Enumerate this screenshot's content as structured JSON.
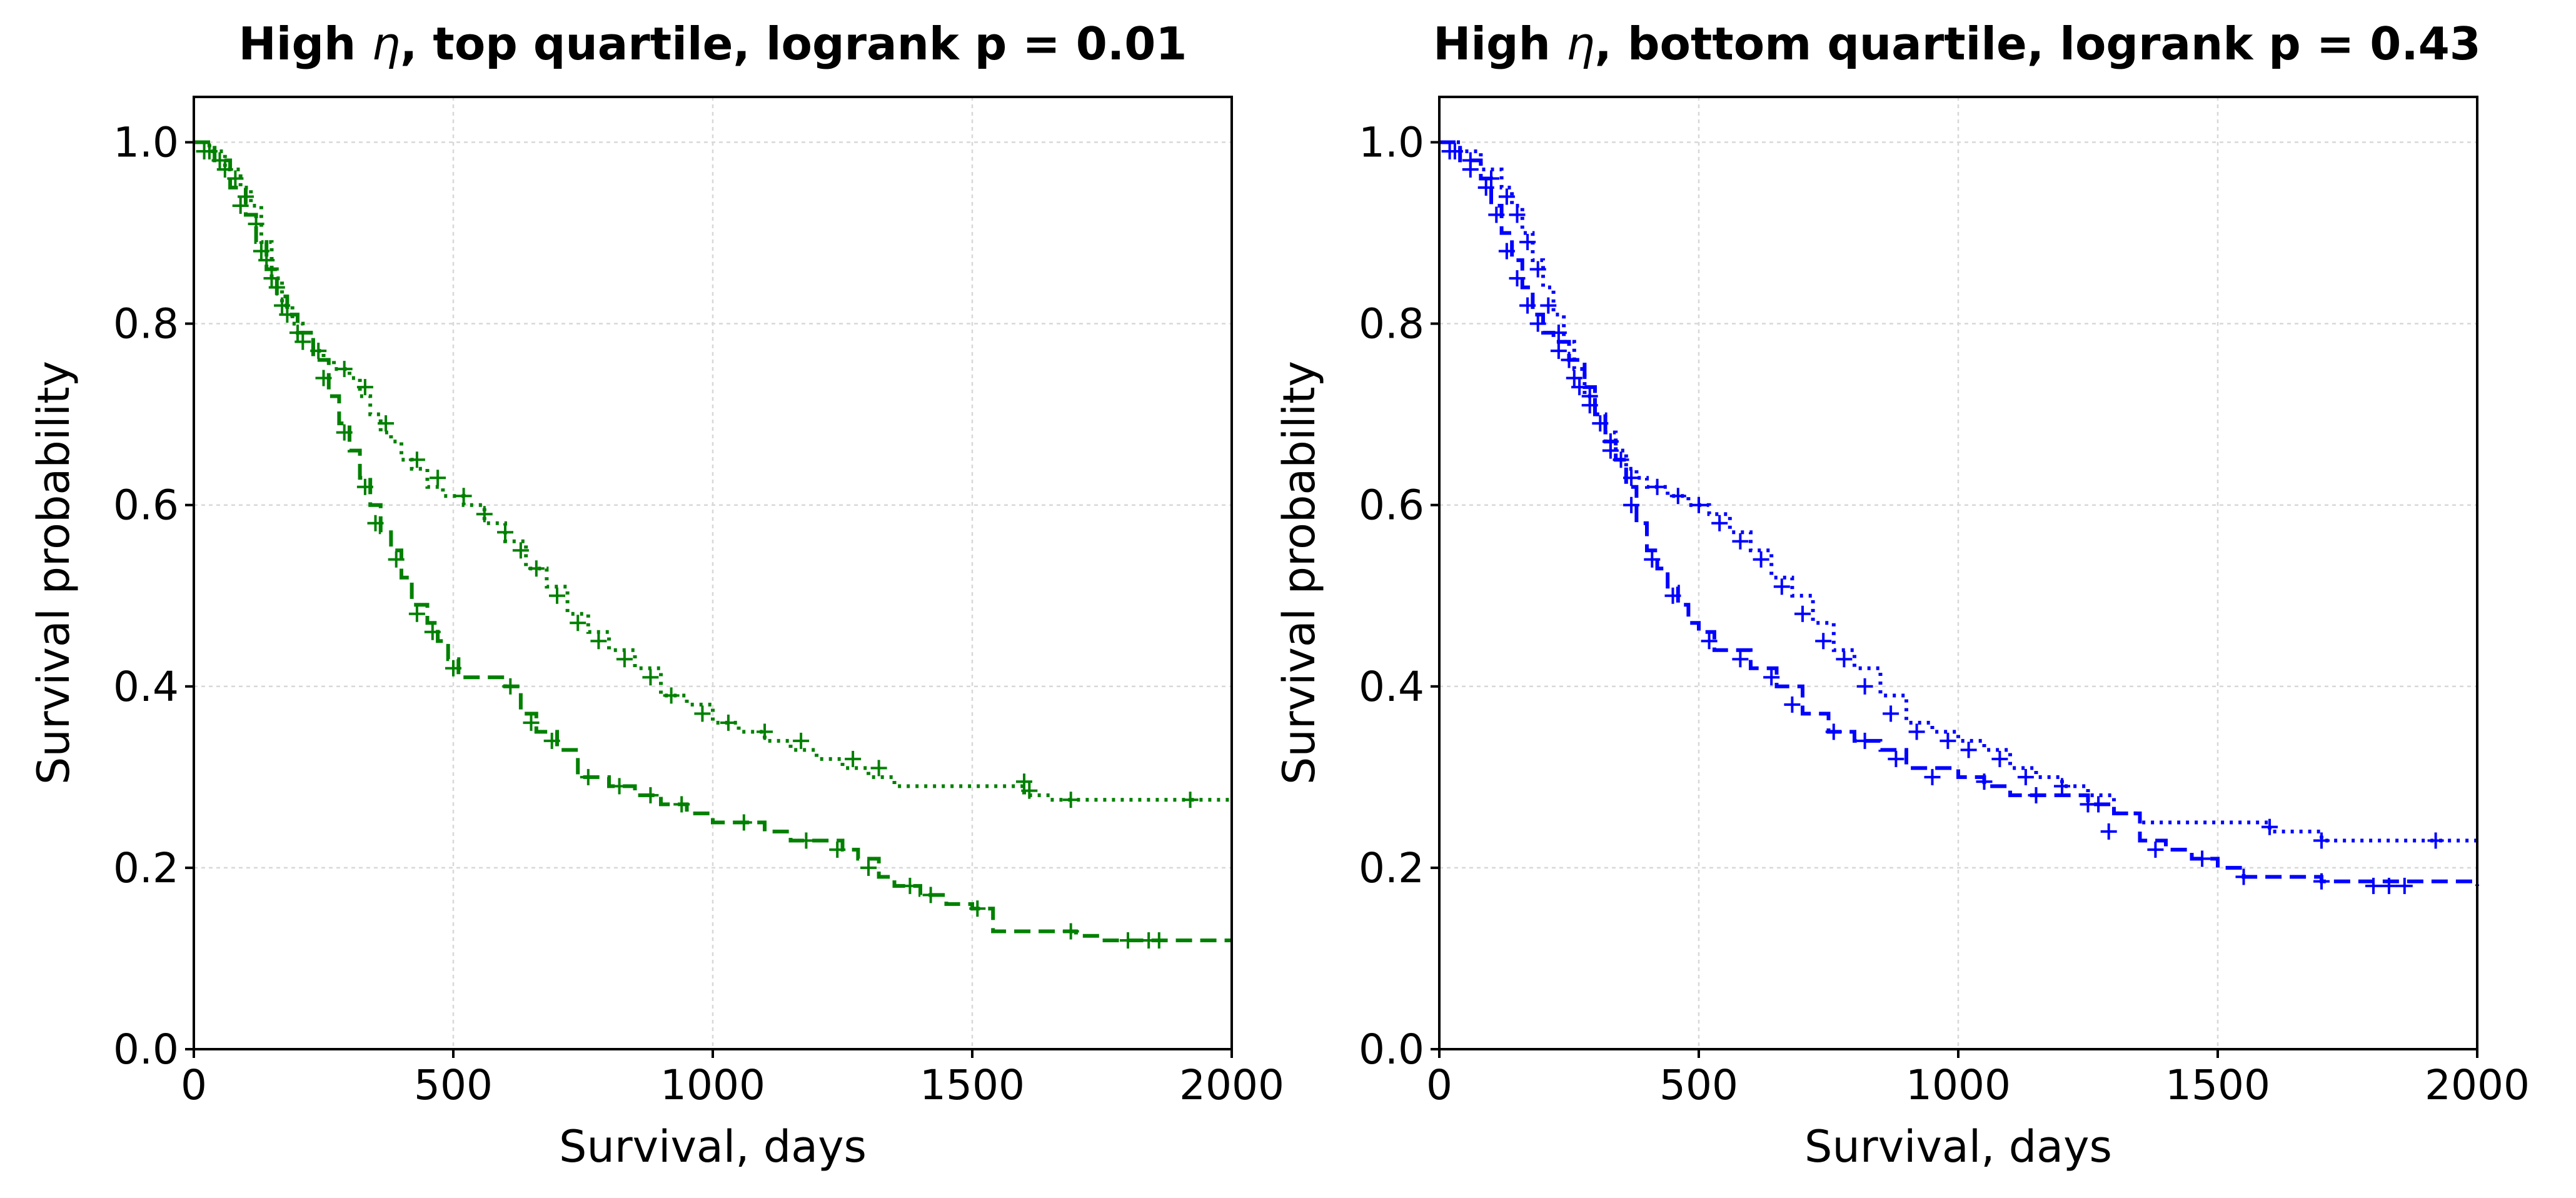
{
  "chart_data": [
    {
      "type": "line",
      "title_prefix": "High ",
      "title_symbol": "η",
      "title_suffix": ", top quartile, logrank p = 0.01",
      "title": "High η, top quartile, logrank p = 0.01",
      "xlabel": "Survival, days",
      "ylabel": "Survival probability",
      "xlim": [
        0,
        2000
      ],
      "ylim": [
        0.0,
        1.05
      ],
      "xticks": [
        0,
        500,
        1000,
        1500,
        2000
      ],
      "yticks": [
        0.0,
        0.2,
        0.4,
        0.6,
        0.8,
        1.0
      ],
      "xtick_labels": [
        "0",
        "500",
        "1000",
        "1500",
        "2000"
      ],
      "ytick_labels": [
        "0.0",
        "0.2",
        "0.4",
        "0.6",
        "0.8",
        "1.0"
      ],
      "grid": true,
      "color": "#008000",
      "series": [
        {
          "name": "dotted",
          "linestyle": "dotted",
          "x": [
            0,
            30,
            60,
            90,
            110,
            130,
            150,
            170,
            190,
            210,
            230,
            250,
            270,
            300,
            320,
            340,
            360,
            380,
            400,
            420,
            450,
            480,
            520,
            560,
            600,
            640,
            680,
            720,
            760,
            800,
            850,
            900,
            950,
            1000,
            1050,
            1100,
            1150,
            1200,
            1250,
            1300,
            1350,
            1400,
            1500,
            1600,
            1650,
            2000
          ],
          "y": [
            1.0,
            0.99,
            0.97,
            0.95,
            0.93,
            0.89,
            0.85,
            0.82,
            0.8,
            0.79,
            0.77,
            0.76,
            0.75,
            0.74,
            0.72,
            0.7,
            0.68,
            0.67,
            0.65,
            0.64,
            0.62,
            0.61,
            0.6,
            0.58,
            0.56,
            0.53,
            0.51,
            0.48,
            0.46,
            0.44,
            0.42,
            0.39,
            0.38,
            0.36,
            0.35,
            0.34,
            0.33,
            0.32,
            0.31,
            0.3,
            0.29,
            0.29,
            0.29,
            0.28,
            0.275,
            0.275
          ],
          "censored_x": [
            20,
            50,
            80,
            100,
            120,
            140,
            160,
            180,
            200,
            240,
            290,
            330,
            370,
            430,
            470,
            520,
            560,
            600,
            630,
            660,
            700,
            740,
            780,
            830,
            880,
            920,
            980,
            1030,
            1100,
            1170,
            1270,
            1320,
            1600,
            1610,
            1690,
            1920
          ],
          "censored_y": [
            0.99,
            0.98,
            0.96,
            0.94,
            0.91,
            0.87,
            0.84,
            0.81,
            0.79,
            0.77,
            0.75,
            0.73,
            0.69,
            0.65,
            0.63,
            0.61,
            0.59,
            0.57,
            0.55,
            0.53,
            0.5,
            0.47,
            0.45,
            0.43,
            0.41,
            0.39,
            0.37,
            0.36,
            0.35,
            0.34,
            0.32,
            0.31,
            0.295,
            0.285,
            0.275,
            0.275
          ]
        },
        {
          "name": "dashed",
          "linestyle": "dashed",
          "x": [
            0,
            40,
            70,
            100,
            120,
            140,
            160,
            180,
            200,
            230,
            260,
            280,
            300,
            320,
            340,
            360,
            380,
            400,
            420,
            450,
            470,
            490,
            510,
            530,
            600,
            630,
            660,
            700,
            740,
            800,
            850,
            900,
            950,
            1000,
            1050,
            1100,
            1150,
            1200,
            1250,
            1280,
            1320,
            1350,
            1400,
            1450,
            1500,
            1540,
            1700,
            1750,
            2000
          ],
          "y": [
            1.0,
            0.98,
            0.95,
            0.92,
            0.89,
            0.86,
            0.83,
            0.81,
            0.79,
            0.76,
            0.72,
            0.69,
            0.66,
            0.63,
            0.6,
            0.57,
            0.55,
            0.52,
            0.49,
            0.47,
            0.45,
            0.43,
            0.41,
            0.41,
            0.4,
            0.37,
            0.35,
            0.33,
            0.3,
            0.29,
            0.28,
            0.27,
            0.26,
            0.25,
            0.25,
            0.24,
            0.23,
            0.23,
            0.22,
            0.21,
            0.19,
            0.18,
            0.17,
            0.16,
            0.155,
            0.13,
            0.125,
            0.12,
            0.12
          ],
          "censored_x": [
            30,
            60,
            90,
            130,
            150,
            170,
            210,
            250,
            290,
            330,
            350,
            390,
            430,
            460,
            500,
            610,
            650,
            690,
            760,
            820,
            880,
            940,
            1060,
            1180,
            1240,
            1300,
            1380,
            1420,
            1510,
            1690,
            1800,
            1840,
            1860
          ],
          "censored_y": [
            0.99,
            0.97,
            0.93,
            0.88,
            0.85,
            0.82,
            0.78,
            0.74,
            0.68,
            0.62,
            0.58,
            0.54,
            0.48,
            0.46,
            0.42,
            0.4,
            0.36,
            0.34,
            0.3,
            0.29,
            0.28,
            0.27,
            0.25,
            0.23,
            0.22,
            0.2,
            0.18,
            0.17,
            0.155,
            0.13,
            0.12,
            0.12,
            0.12
          ]
        }
      ]
    },
    {
      "type": "line",
      "title_prefix": "High ",
      "title_symbol": "η",
      "title_suffix": ", bottom quartile, logrank p = 0.43",
      "title": "High η, bottom quartile, logrank p = 0.43",
      "xlabel": "Survival, days",
      "ylabel": "Survival probability",
      "xlim": [
        0,
        2000
      ],
      "ylim": [
        0.0,
        1.05
      ],
      "xticks": [
        0,
        500,
        1000,
        1500,
        2000
      ],
      "yticks": [
        0.0,
        0.2,
        0.4,
        0.6,
        0.8,
        1.0
      ],
      "xtick_labels": [
        "0",
        "500",
        "1000",
        "1500",
        "2000"
      ],
      "ytick_labels": [
        "0.0",
        "0.2",
        "0.4",
        "0.6",
        "0.8",
        "1.0"
      ],
      "grid": true,
      "color": "#0000ff",
      "series": [
        {
          "name": "dotted",
          "linestyle": "dotted",
          "x": [
            0,
            40,
            80,
            120,
            140,
            160,
            180,
            200,
            220,
            240,
            260,
            280,
            300,
            320,
            340,
            360,
            380,
            400,
            440,
            480,
            520,
            560,
            600,
            640,
            680,
            720,
            760,
            800,
            850,
            900,
            950,
            1000,
            1050,
            1100,
            1150,
            1200,
            1250,
            1300,
            1350,
            1600,
            1700,
            2000
          ],
          "y": [
            1.0,
            0.99,
            0.97,
            0.95,
            0.93,
            0.9,
            0.87,
            0.84,
            0.81,
            0.78,
            0.75,
            0.72,
            0.7,
            0.68,
            0.66,
            0.64,
            0.63,
            0.62,
            0.61,
            0.6,
            0.59,
            0.57,
            0.55,
            0.52,
            0.5,
            0.47,
            0.44,
            0.42,
            0.39,
            0.36,
            0.35,
            0.34,
            0.33,
            0.31,
            0.3,
            0.29,
            0.28,
            0.26,
            0.25,
            0.24,
            0.23,
            0.23
          ],
          "censored_x": [
            20,
            60,
            100,
            130,
            150,
            170,
            190,
            210,
            230,
            250,
            270,
            290,
            310,
            330,
            350,
            370,
            420,
            460,
            500,
            540,
            580,
            620,
            660,
            700,
            740,
            780,
            820,
            870,
            920,
            980,
            1020,
            1080,
            1130,
            1200,
            1270,
            1600,
            1700,
            1920
          ],
          "censored_y": [
            0.99,
            0.98,
            0.96,
            0.94,
            0.92,
            0.89,
            0.86,
            0.82,
            0.79,
            0.76,
            0.73,
            0.71,
            0.69,
            0.67,
            0.65,
            0.63,
            0.62,
            0.61,
            0.6,
            0.58,
            0.56,
            0.54,
            0.51,
            0.48,
            0.45,
            0.43,
            0.4,
            0.37,
            0.35,
            0.34,
            0.33,
            0.32,
            0.3,
            0.29,
            0.27,
            0.245,
            0.23,
            0.23
          ]
        },
        {
          "name": "dashed",
          "linestyle": "dashed",
          "x": [
            0,
            40,
            80,
            100,
            120,
            140,
            160,
            180,
            200,
            220,
            250,
            280,
            300,
            320,
            340,
            360,
            380,
            400,
            420,
            440,
            460,
            480,
            500,
            530,
            560,
            600,
            650,
            700,
            750,
            800,
            850,
            900,
            1000,
            1050,
            1100,
            1200,
            1250,
            1300,
            1350,
            1400,
            1450,
            1500,
            1550,
            1700,
            2000
          ],
          "y": [
            1.0,
            0.98,
            0.96,
            0.93,
            0.9,
            0.87,
            0.84,
            0.81,
            0.79,
            0.78,
            0.76,
            0.73,
            0.7,
            0.67,
            0.65,
            0.62,
            0.58,
            0.55,
            0.53,
            0.51,
            0.49,
            0.47,
            0.46,
            0.44,
            0.44,
            0.42,
            0.4,
            0.37,
            0.35,
            0.34,
            0.33,
            0.31,
            0.3,
            0.29,
            0.28,
            0.28,
            0.27,
            0.26,
            0.23,
            0.22,
            0.21,
            0.2,
            0.19,
            0.185,
            0.18
          ],
          "censored_x": [
            30,
            60,
            90,
            110,
            130,
            150,
            170,
            190,
            230,
            260,
            290,
            330,
            370,
            410,
            450,
            520,
            580,
            640,
            680,
            760,
            820,
            880,
            950,
            1050,
            1150,
            1250,
            1290,
            1380,
            1470,
            1550,
            1700,
            1800,
            1830,
            1860
          ],
          "censored_y": [
            0.99,
            0.97,
            0.95,
            0.92,
            0.88,
            0.85,
            0.82,
            0.8,
            0.77,
            0.74,
            0.72,
            0.66,
            0.6,
            0.54,
            0.5,
            0.45,
            0.43,
            0.41,
            0.38,
            0.35,
            0.34,
            0.32,
            0.3,
            0.295,
            0.28,
            0.27,
            0.24,
            0.22,
            0.21,
            0.19,
            0.185,
            0.18,
            0.18,
            0.18
          ]
        }
      ]
    }
  ]
}
